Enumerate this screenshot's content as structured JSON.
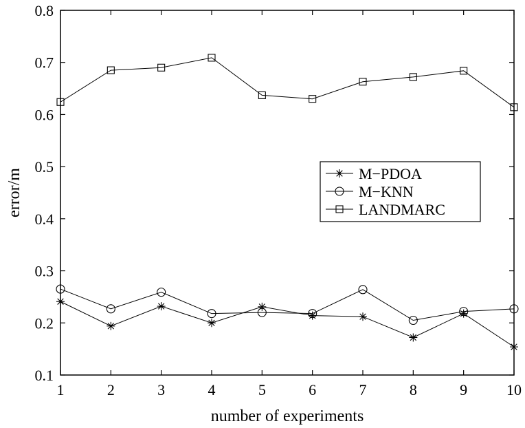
{
  "chart_data": {
    "type": "line",
    "title": "",
    "xlabel": "number of experiments",
    "ylabel": "error/m",
    "x": [
      1,
      2,
      3,
      4,
      5,
      6,
      7,
      8,
      9,
      10
    ],
    "xlim": [
      1,
      10
    ],
    "ylim": [
      0.1,
      0.8
    ],
    "xticks": [
      "1",
      "2",
      "3",
      "4",
      "5",
      "6",
      "7",
      "8",
      "9",
      "10"
    ],
    "yticks": [
      "0.1",
      "0.2",
      "0.3",
      "0.4",
      "0.5",
      "0.6",
      "0.7",
      "0.8"
    ],
    "grid": false,
    "legend_position": "right",
    "series": [
      {
        "name": "M−PDOA",
        "marker": "asterisk",
        "color": "#000000",
        "values": [
          0.241,
          0.194,
          0.232,
          0.2,
          0.231,
          0.214,
          0.212,
          0.172,
          0.218,
          0.154
        ]
      },
      {
        "name": "M−KNN",
        "marker": "circle",
        "color": "#000000",
        "values": [
          0.265,
          0.227,
          0.259,
          0.218,
          0.22,
          0.218,
          0.264,
          0.205,
          0.222,
          0.227
        ]
      },
      {
        "name": "LANDMARC",
        "marker": "square",
        "color": "#000000",
        "values": [
          0.624,
          0.685,
          0.69,
          0.709,
          0.637,
          0.63,
          0.663,
          0.672,
          0.684,
          0.614
        ]
      }
    ]
  }
}
